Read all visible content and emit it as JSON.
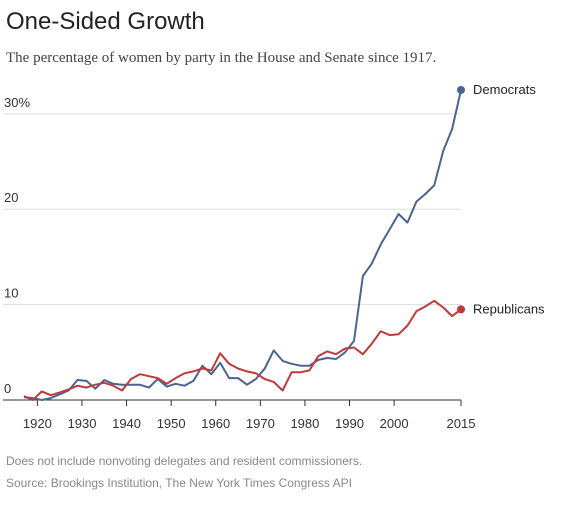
{
  "chart_data": {
    "type": "line",
    "title": "One-Sided Growth",
    "subtitle": "The percentage of women by party in the House and Senate since 1917.",
    "xlabel": "",
    "ylabel": "",
    "xlim": [
      1917,
      2015
    ],
    "ylim": [
      0,
      32.5
    ],
    "x_ticks": [
      1920,
      1930,
      1940,
      1950,
      1960,
      1970,
      1980,
      1990,
      2000,
      2015
    ],
    "x_tick_labels": [
      "1920",
      "1930",
      "1940",
      "1950",
      "1960",
      "1970",
      "1980",
      "1990",
      "2000",
      "2015"
    ],
    "y_ticks": [
      0,
      10,
      20,
      30
    ],
    "y_tick_labels": [
      "0",
      "10",
      "20",
      "30%"
    ],
    "grid": true,
    "legend": "direct labels at line ends",
    "series": [
      {
        "name": "Democrats",
        "color": "#4a6491",
        "x": [
          1917,
          1919,
          1921,
          1923,
          1925,
          1927,
          1929,
          1931,
          1933,
          1935,
          1937,
          1939,
          1941,
          1943,
          1945,
          1947,
          1949,
          1951,
          1953,
          1955,
          1957,
          1959,
          1961,
          1963,
          1965,
          1967,
          1969,
          1971,
          1973,
          1975,
          1977,
          1979,
          1981,
          1983,
          1985,
          1987,
          1989,
          1991,
          1993,
          1995,
          1997,
          1999,
          2001,
          2003,
          2005,
          2007,
          2009,
          2011,
          2013,
          2015
        ],
        "y": [
          0.3,
          0.2,
          0.0,
          0.2,
          0.6,
          1.0,
          2.1,
          2.0,
          1.2,
          2.1,
          1.7,
          1.6,
          1.6,
          1.6,
          1.3,
          2.2,
          1.4,
          1.7,
          1.5,
          2.0,
          3.6,
          2.7,
          3.9,
          2.3,
          2.3,
          1.6,
          2.2,
          3.3,
          5.2,
          4.1,
          3.8,
          3.6,
          3.6,
          4.2,
          4.4,
          4.3,
          5.0,
          6.2,
          13.0,
          14.3,
          16.3,
          17.9,
          19.5,
          18.6,
          20.8,
          21.6,
          22.5,
          26.1,
          28.4,
          32.5
        ]
      },
      {
        "name": "Republicans",
        "color": "#c0393b",
        "x": [
          1917,
          1919,
          1921,
          1923,
          1925,
          1927,
          1929,
          1931,
          1933,
          1935,
          1937,
          1939,
          1941,
          1943,
          1945,
          1947,
          1949,
          1951,
          1953,
          1955,
          1957,
          1959,
          1961,
          1963,
          1965,
          1967,
          1969,
          1971,
          1973,
          1975,
          1977,
          1979,
          1981,
          1983,
          1985,
          1987,
          1989,
          1991,
          1993,
          1995,
          1997,
          1999,
          2001,
          2003,
          2005,
          2007,
          2009,
          2011,
          2013,
          2015
        ],
        "y": [
          0.4,
          0.0,
          0.9,
          0.5,
          0.8,
          1.1,
          1.5,
          1.3,
          1.6,
          1.8,
          1.5,
          1.0,
          2.2,
          2.7,
          2.5,
          2.3,
          1.7,
          2.3,
          2.8,
          3.0,
          3.3,
          3.1,
          4.9,
          3.8,
          3.3,
          3.0,
          2.8,
          2.2,
          1.9,
          1.0,
          2.9,
          2.9,
          3.1,
          4.6,
          5.1,
          4.8,
          5.4,
          5.5,
          4.8,
          5.9,
          7.2,
          6.8,
          6.9,
          7.8,
          9.3,
          9.8,
          10.4,
          9.7,
          8.8,
          9.5
        ]
      }
    ]
  },
  "footer": {
    "note": "Does not include nonvoting delegates and resident commissioners.",
    "source": "Source: Brookings Institution, The New York Times Congress API"
  }
}
